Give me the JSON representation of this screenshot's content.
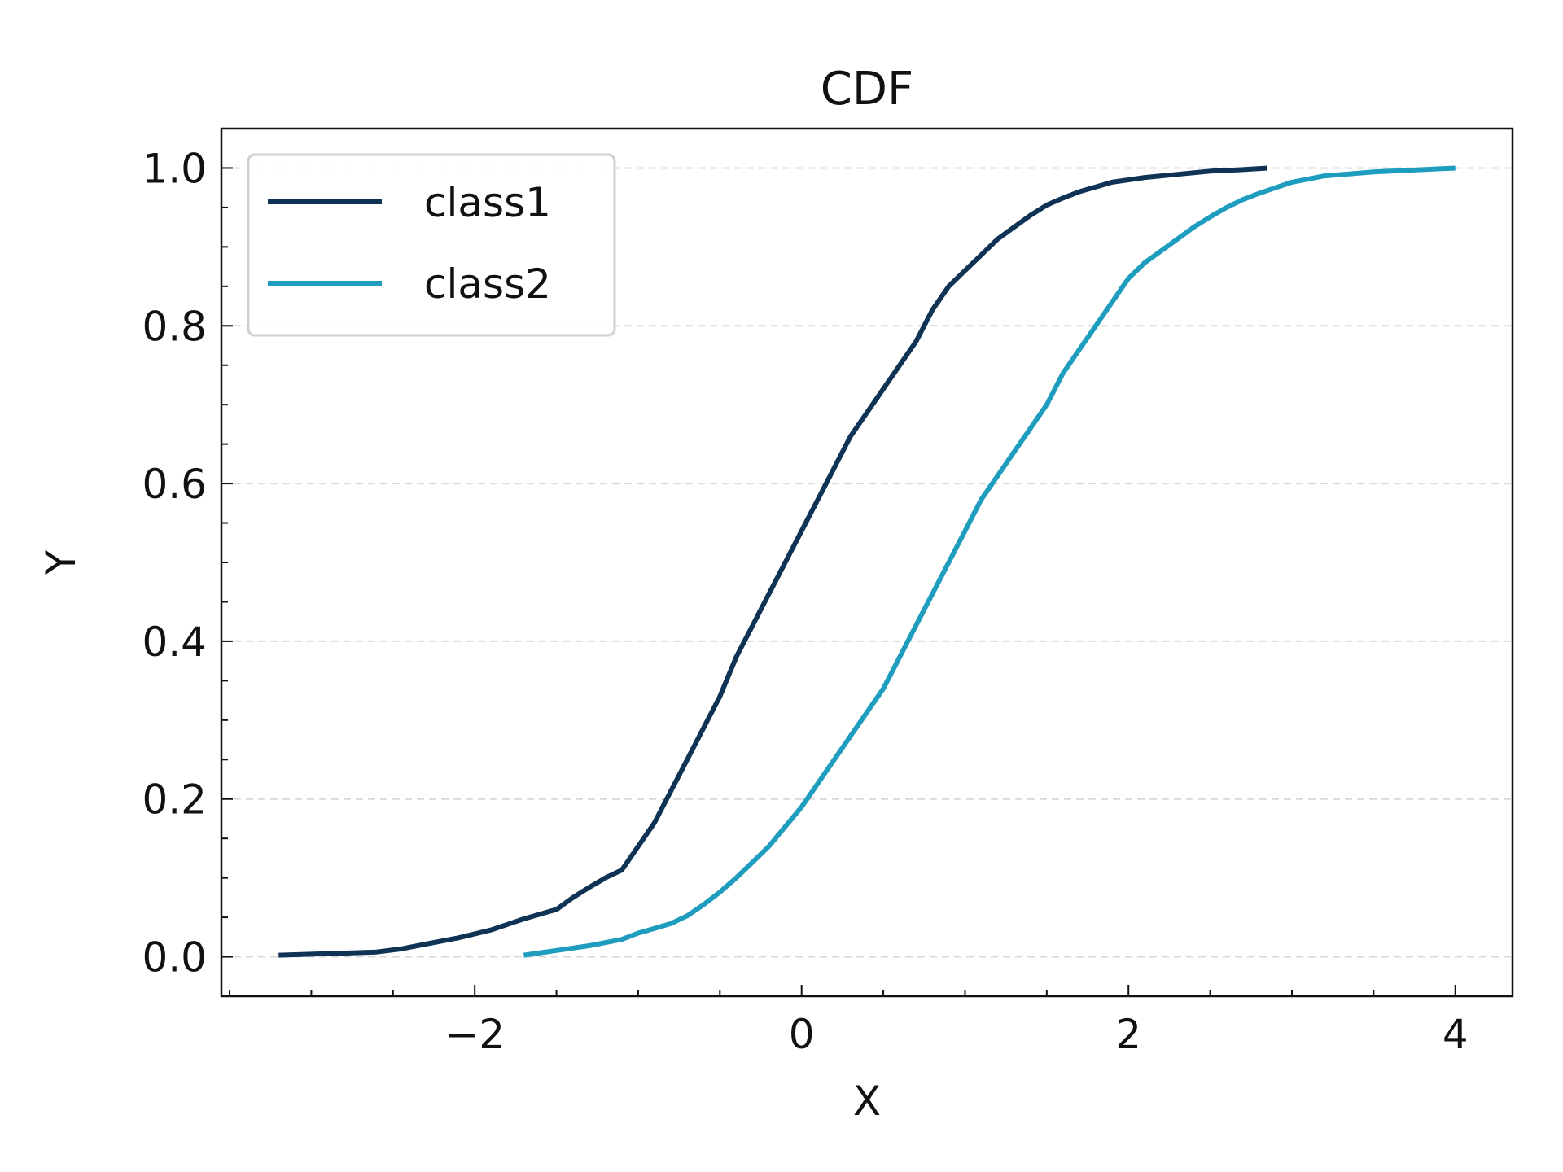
{
  "chart_data": {
    "type": "line",
    "title": "CDF",
    "xlabel": "X",
    "ylabel": "Y",
    "xlim": [
      -3.55,
      4.35
    ],
    "ylim": [
      -0.05,
      1.05
    ],
    "xticks": [
      -2,
      0,
      2,
      4
    ],
    "xtick_labels": [
      "−2",
      "0",
      "2",
      "4"
    ],
    "yticks": [
      0.0,
      0.2,
      0.4,
      0.6,
      0.8,
      1.0
    ],
    "ytick_labels": [
      "0.0",
      "0.2",
      "0.4",
      "0.6",
      "0.8",
      "1.0"
    ],
    "grid": "horizontal dashed",
    "legend_position": "upper-left",
    "series": [
      {
        "name": "class1",
        "color": "#0e3354",
        "x": [
          -3.2,
          -2.9,
          -2.6,
          -2.45,
          -2.3,
          -2.1,
          -1.9,
          -1.7,
          -1.5,
          -1.4,
          -1.3,
          -1.2,
          -1.1,
          -1.0,
          -0.9,
          -0.8,
          -0.7,
          -0.6,
          -0.5,
          -0.4,
          -0.3,
          -0.2,
          -0.1,
          0.0,
          0.1,
          0.2,
          0.3,
          0.4,
          0.5,
          0.6,
          0.7,
          0.8,
          0.9,
          1.0,
          1.1,
          1.2,
          1.3,
          1.4,
          1.5,
          1.6,
          1.7,
          1.8,
          1.9,
          2.1,
          2.3,
          2.5,
          2.7,
          2.85
        ],
        "y": [
          0.002,
          0.004,
          0.006,
          0.01,
          0.016,
          0.024,
          0.034,
          0.048,
          0.06,
          0.075,
          0.088,
          0.1,
          0.11,
          0.14,
          0.17,
          0.21,
          0.25,
          0.29,
          0.33,
          0.38,
          0.42,
          0.46,
          0.5,
          0.54,
          0.58,
          0.62,
          0.66,
          0.69,
          0.72,
          0.75,
          0.78,
          0.82,
          0.85,
          0.87,
          0.89,
          0.91,
          0.925,
          0.94,
          0.953,
          0.962,
          0.97,
          0.976,
          0.982,
          0.988,
          0.992,
          0.996,
          0.998,
          1.0
        ]
      },
      {
        "name": "class2",
        "color": "#1f9dbf",
        "x": [
          -1.7,
          -1.5,
          -1.3,
          -1.1,
          -1.0,
          -0.9,
          -0.8,
          -0.7,
          -0.6,
          -0.5,
          -0.4,
          -0.3,
          -0.2,
          -0.1,
          0.0,
          0.1,
          0.2,
          0.3,
          0.4,
          0.5,
          0.6,
          0.7,
          0.8,
          0.9,
          1.0,
          1.1,
          1.2,
          1.3,
          1.4,
          1.5,
          1.6,
          1.7,
          1.8,
          1.9,
          2.0,
          2.1,
          2.2,
          2.3,
          2.4,
          2.5,
          2.6,
          2.7,
          2.8,
          2.9,
          3.0,
          3.2,
          3.5,
          3.8,
          4.0
        ],
        "y": [
          0.002,
          0.008,
          0.014,
          0.022,
          0.03,
          0.036,
          0.042,
          0.052,
          0.066,
          0.082,
          0.1,
          0.12,
          0.14,
          0.165,
          0.19,
          0.22,
          0.25,
          0.28,
          0.31,
          0.34,
          0.38,
          0.42,
          0.46,
          0.5,
          0.54,
          0.58,
          0.61,
          0.64,
          0.67,
          0.7,
          0.74,
          0.77,
          0.8,
          0.83,
          0.86,
          0.88,
          0.895,
          0.91,
          0.925,
          0.938,
          0.95,
          0.96,
          0.968,
          0.975,
          0.982,
          0.99,
          0.995,
          0.998,
          1.0
        ]
      }
    ]
  }
}
